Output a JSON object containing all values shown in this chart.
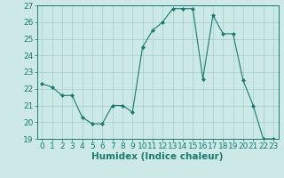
{
  "x": [
    0,
    1,
    2,
    3,
    4,
    5,
    6,
    7,
    8,
    9,
    10,
    11,
    12,
    13,
    14,
    15,
    16,
    17,
    18,
    19,
    20,
    21,
    22,
    23
  ],
  "y": [
    22.3,
    22.1,
    21.6,
    21.6,
    20.3,
    19.9,
    19.9,
    21.0,
    21.0,
    20.6,
    24.5,
    25.5,
    26.0,
    26.8,
    26.8,
    26.8,
    22.6,
    26.4,
    25.3,
    25.3,
    22.5,
    21.0,
    19.0,
    19.0
  ],
  "line_color": "#1a7a6e",
  "marker": "D",
  "marker_size": 2,
  "bg_color": "#cce9e7",
  "grid_color": "#a0cece",
  "xlabel": "Humidex (Indice chaleur)",
  "ylim": [
    19,
    27
  ],
  "xlim": [
    -0.5,
    23.5
  ],
  "yticks": [
    19,
    20,
    21,
    22,
    23,
    24,
    25,
    26,
    27
  ],
  "xticks": [
    0,
    1,
    2,
    3,
    4,
    5,
    6,
    7,
    8,
    9,
    10,
    11,
    12,
    13,
    14,
    15,
    16,
    17,
    18,
    19,
    20,
    21,
    22,
    23
  ],
  "tick_color": "#1a7a6e",
  "label_color": "#1a7a6e",
  "font_size": 6.5,
  "xlabel_fontsize": 7.5
}
